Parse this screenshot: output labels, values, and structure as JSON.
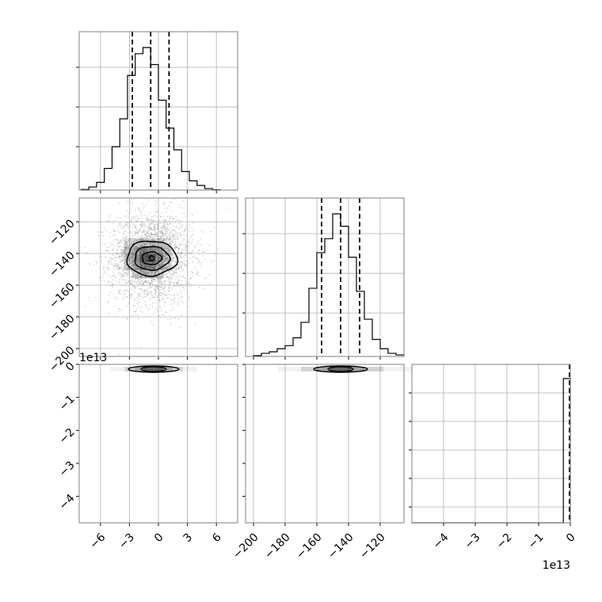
{
  "chart_data": {
    "type": "corner",
    "colors": {
      "line": "#000000",
      "grid": "#b0b0b0",
      "frame": "#808080",
      "scatter": "#7f7f7f"
    },
    "grid": true,
    "panels": [
      {
        "id": "hist-p0",
        "type": "histogram",
        "xlim": [
          -8.2,
          8.2
        ],
        "bins": [
          -8,
          -7.2,
          -6.4,
          -5.6,
          -4.8,
          -4.0,
          -3.2,
          -2.4,
          -1.6,
          -0.8,
          0.0,
          0.8,
          1.6,
          2.4,
          3.2,
          4.0,
          4.8,
          5.6,
          6.4
        ],
        "counts": [
          0.004,
          0.02,
          0.05,
          0.14,
          0.28,
          0.46,
          0.74,
          0.88,
          0.92,
          0.81,
          0.58,
          0.4,
          0.26,
          0.12,
          0.06,
          0.03,
          0.01,
          0.002
        ],
        "quantiles": [
          -2.7,
          -0.8,
          1.1
        ]
      },
      {
        "id": "hist-p1",
        "type": "histogram",
        "xlim": [
          -205,
          -105
        ],
        "bins": [
          -200,
          -195,
          -190,
          -185,
          -180,
          -175,
          -170,
          -165,
          -160,
          -155,
          -150,
          -145,
          -140,
          -135,
          -130,
          -125,
          -120,
          -115,
          -110,
          -105
        ],
        "counts": [
          0.005,
          0.02,
          0.03,
          0.05,
          0.07,
          0.12,
          0.22,
          0.44,
          0.67,
          0.76,
          0.92,
          0.84,
          0.64,
          0.42,
          0.24,
          0.11,
          0.05,
          0.02,
          0.01
        ],
        "quantiles": [
          -157,
          -145,
          -133
        ]
      },
      {
        "id": "hist-p2",
        "type": "histogram",
        "xlim": [
          -5.0,
          0.0
        ],
        "bar_x": [
          -0.22,
          0.0
        ],
        "bar_height": 0.92,
        "quantile_line": 0.0
      },
      {
        "id": "scatter-p0-p1",
        "type": "scatter_density",
        "xlim": [
          -8.2,
          8.2
        ],
        "ylim": [
          -205,
          -105
        ],
        "center": [
          -0.7,
          -143
        ],
        "contours_at_levels": [
          [
            2.6,
            11
          ],
          [
            1.8,
            7.5
          ],
          [
            1.0,
            4
          ],
          [
            0.25,
            1.5
          ]
        ]
      },
      {
        "id": "scatter-p0-p2",
        "type": "scatter_density",
        "xlim": [
          -8.2,
          8.2
        ],
        "ylim": [
          -4.8,
          0.0
        ],
        "center": [
          -0.5,
          -0.01
        ]
      },
      {
        "id": "scatter-p1-p2",
        "type": "scatter_density",
        "xlim": [
          -205,
          -105
        ],
        "ylim": [
          -4.8,
          0.0
        ],
        "center": [
          -145,
          -0.01
        ]
      }
    ],
    "axes": {
      "x_p0": {
        "ticks": [
          -6,
          -3,
          0,
          3,
          6
        ],
        "tick_labels": [
          "−6",
          "−3",
          "0",
          "3",
          "6"
        ]
      },
      "x_p1": {
        "ticks": [
          -200,
          -180,
          -160,
          -140,
          -120
        ],
        "tick_labels": [
          "−200",
          "−180",
          "−160",
          "−140",
          "−120"
        ]
      },
      "x_p2": {
        "ticks": [
          -4,
          -3,
          -2,
          -1,
          0
        ],
        "tick_labels": [
          "−4",
          "−3",
          "−2",
          "−1",
          "0"
        ],
        "offset_text": "1e13"
      },
      "y_p1": {
        "ticks": [
          -200,
          -180,
          -160,
          -140,
          -120
        ],
        "tick_labels": [
          "−200",
          "−180",
          "−160",
          "−140",
          "−120"
        ]
      },
      "y_p2": {
        "ticks": [
          -4,
          -3,
          -2,
          -1,
          0
        ],
        "tick_labels": [
          "−4",
          "−3",
          "−2",
          "−1",
          "0"
        ],
        "offset_text": "1e13"
      }
    }
  }
}
